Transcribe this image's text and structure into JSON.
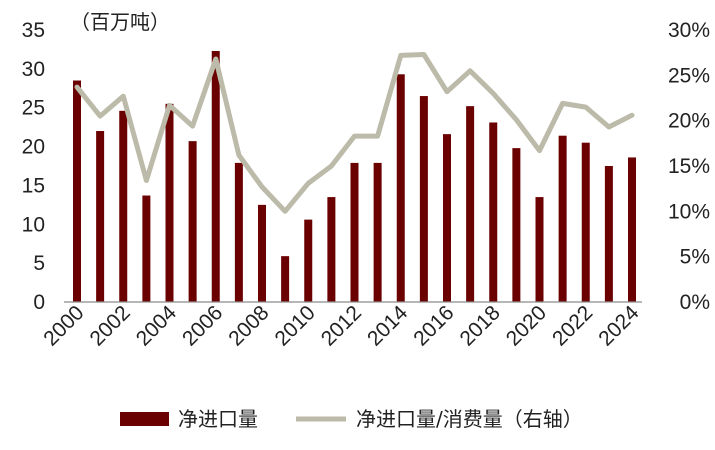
{
  "chart_data": {
    "type": "bar+line",
    "left_axis_unit": "（百万吨）",
    "y_left": {
      "min": 0,
      "max": 35,
      "ticks": [
        "0",
        "5",
        "10",
        "15",
        "20",
        "25",
        "30",
        "35"
      ]
    },
    "y_right": {
      "min": 0,
      "max": 30,
      "ticks": [
        "0%",
        "5%",
        "10%",
        "15%",
        "20%",
        "25%",
        "30%"
      ]
    },
    "x_tick_labels": [
      "2000",
      "2002",
      "2004",
      "2006",
      "2008",
      "2010",
      "2012",
      "2014",
      "2016",
      "2018",
      "2020",
      "2022",
      "2024"
    ],
    "years": [
      2000,
      2001,
      2002,
      2003,
      2004,
      2005,
      2006,
      2007,
      2008,
      2009,
      2010,
      2011,
      2012,
      2013,
      2014,
      2015,
      2016,
      2017,
      2018,
      2019,
      2020,
      2021,
      2022,
      2023,
      2024
    ],
    "series": [
      {
        "name": "净进口量",
        "type": "bar",
        "axis": "left",
        "values": [
          28.5,
          22.0,
          24.6,
          13.7,
          25.5,
          20.7,
          32.3,
          17.9,
          12.5,
          5.9,
          10.6,
          13.5,
          17.9,
          17.9,
          29.3,
          26.5,
          21.6,
          25.2,
          23.1,
          19.8,
          13.5,
          21.4,
          20.5,
          17.5,
          18.6
        ],
        "color": "#6b0000"
      },
      {
        "name": "净进口量/消费量（右轴）",
        "type": "line",
        "axis": "right",
        "values": [
          23.7,
          20.5,
          22.7,
          13.4,
          21.7,
          19.4,
          26.8,
          16.2,
          12.7,
          10.0,
          13.1,
          15.0,
          18.3,
          18.3,
          27.2,
          27.3,
          23.2,
          25.5,
          23.0,
          20.1,
          16.7,
          21.9,
          21.5,
          19.3,
          20.6
        ],
        "color": "#bcbaa9"
      }
    ],
    "legend_position": "bottom",
    "grid": false
  }
}
